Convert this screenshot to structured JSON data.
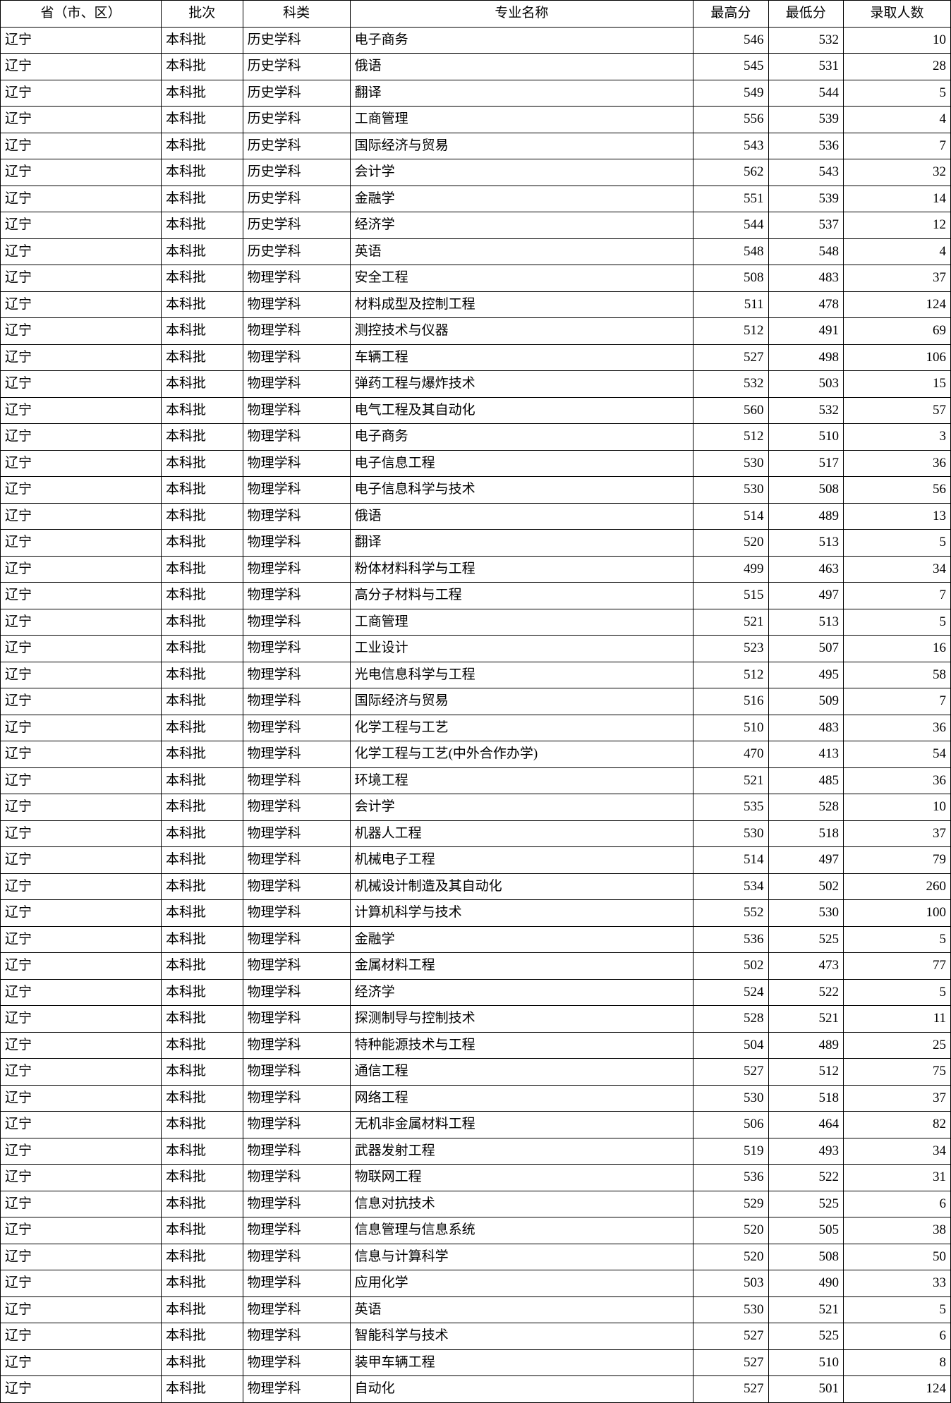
{
  "table": {
    "columns": [
      {
        "key": "province",
        "label": "省（市、区）",
        "class": "col-prov"
      },
      {
        "key": "batch",
        "label": "批次",
        "class": "col-batch"
      },
      {
        "key": "subject",
        "label": "科类",
        "class": "col-subj"
      },
      {
        "key": "major",
        "label": "专业名称",
        "class": "col-major"
      },
      {
        "key": "high",
        "label": "最高分",
        "class": "col-high"
      },
      {
        "key": "low",
        "label": "最低分",
        "class": "col-low"
      },
      {
        "key": "count",
        "label": "录取人数",
        "class": "col-count"
      }
    ],
    "rows": [
      {
        "province": "辽宁",
        "batch": "本科批",
        "subject": "历史学科",
        "major": "电子商务",
        "high": 546,
        "low": 532,
        "count": 10
      },
      {
        "province": "辽宁",
        "batch": "本科批",
        "subject": "历史学科",
        "major": "俄语",
        "high": 545,
        "low": 531,
        "count": 28
      },
      {
        "province": "辽宁",
        "batch": "本科批",
        "subject": "历史学科",
        "major": "翻译",
        "high": 549,
        "low": 544,
        "count": 5
      },
      {
        "province": "辽宁",
        "batch": "本科批",
        "subject": "历史学科",
        "major": "工商管理",
        "high": 556,
        "low": 539,
        "count": 4
      },
      {
        "province": "辽宁",
        "batch": "本科批",
        "subject": "历史学科",
        "major": "国际经济与贸易",
        "high": 543,
        "low": 536,
        "count": 7
      },
      {
        "province": "辽宁",
        "batch": "本科批",
        "subject": "历史学科",
        "major": "会计学",
        "high": 562,
        "low": 543,
        "count": 32
      },
      {
        "province": "辽宁",
        "batch": "本科批",
        "subject": "历史学科",
        "major": "金融学",
        "high": 551,
        "low": 539,
        "count": 14
      },
      {
        "province": "辽宁",
        "batch": "本科批",
        "subject": "历史学科",
        "major": "经济学",
        "high": 544,
        "low": 537,
        "count": 12
      },
      {
        "province": "辽宁",
        "batch": "本科批",
        "subject": "历史学科",
        "major": "英语",
        "high": 548,
        "low": 548,
        "count": 4
      },
      {
        "province": "辽宁",
        "batch": "本科批",
        "subject": "物理学科",
        "major": "安全工程",
        "high": 508,
        "low": 483,
        "count": 37
      },
      {
        "province": "辽宁",
        "batch": "本科批",
        "subject": "物理学科",
        "major": "材料成型及控制工程",
        "high": 511,
        "low": 478,
        "count": 124
      },
      {
        "province": "辽宁",
        "batch": "本科批",
        "subject": "物理学科",
        "major": "测控技术与仪器",
        "high": 512,
        "low": 491,
        "count": 69
      },
      {
        "province": "辽宁",
        "batch": "本科批",
        "subject": "物理学科",
        "major": "车辆工程",
        "high": 527,
        "low": 498,
        "count": 106
      },
      {
        "province": "辽宁",
        "batch": "本科批",
        "subject": "物理学科",
        "major": "弹药工程与爆炸技术",
        "high": 532,
        "low": 503,
        "count": 15
      },
      {
        "province": "辽宁",
        "batch": "本科批",
        "subject": "物理学科",
        "major": "电气工程及其自动化",
        "high": 560,
        "low": 532,
        "count": 57
      },
      {
        "province": "辽宁",
        "batch": "本科批",
        "subject": "物理学科",
        "major": "电子商务",
        "high": 512,
        "low": 510,
        "count": 3
      },
      {
        "province": "辽宁",
        "batch": "本科批",
        "subject": "物理学科",
        "major": "电子信息工程",
        "high": 530,
        "low": 517,
        "count": 36
      },
      {
        "province": "辽宁",
        "batch": "本科批",
        "subject": "物理学科",
        "major": "电子信息科学与技术",
        "high": 530,
        "low": 508,
        "count": 56
      },
      {
        "province": "辽宁",
        "batch": "本科批",
        "subject": "物理学科",
        "major": "俄语",
        "high": 514,
        "low": 489,
        "count": 13
      },
      {
        "province": "辽宁",
        "batch": "本科批",
        "subject": "物理学科",
        "major": "翻译",
        "high": 520,
        "low": 513,
        "count": 5
      },
      {
        "province": "辽宁",
        "batch": "本科批",
        "subject": "物理学科",
        "major": "粉体材料科学与工程",
        "high": 499,
        "low": 463,
        "count": 34
      },
      {
        "province": "辽宁",
        "batch": "本科批",
        "subject": "物理学科",
        "major": "高分子材料与工程",
        "high": 515,
        "low": 497,
        "count": 7
      },
      {
        "province": "辽宁",
        "batch": "本科批",
        "subject": "物理学科",
        "major": "工商管理",
        "high": 521,
        "low": 513,
        "count": 5
      },
      {
        "province": "辽宁",
        "batch": "本科批",
        "subject": "物理学科",
        "major": "工业设计",
        "high": 523,
        "low": 507,
        "count": 16
      },
      {
        "province": "辽宁",
        "batch": "本科批",
        "subject": "物理学科",
        "major": "光电信息科学与工程",
        "high": 512,
        "low": 495,
        "count": 58
      },
      {
        "province": "辽宁",
        "batch": "本科批",
        "subject": "物理学科",
        "major": "国际经济与贸易",
        "high": 516,
        "low": 509,
        "count": 7
      },
      {
        "province": "辽宁",
        "batch": "本科批",
        "subject": "物理学科",
        "major": "化学工程与工艺",
        "high": 510,
        "low": 483,
        "count": 36
      },
      {
        "province": "辽宁",
        "batch": "本科批",
        "subject": "物理学科",
        "major": "化学工程与工艺(中外合作办学)",
        "high": 470,
        "low": 413,
        "count": 54
      },
      {
        "province": "辽宁",
        "batch": "本科批",
        "subject": "物理学科",
        "major": "环境工程",
        "high": 521,
        "low": 485,
        "count": 36
      },
      {
        "province": "辽宁",
        "batch": "本科批",
        "subject": "物理学科",
        "major": "会计学",
        "high": 535,
        "low": 528,
        "count": 10
      },
      {
        "province": "辽宁",
        "batch": "本科批",
        "subject": "物理学科",
        "major": "机器人工程",
        "high": 530,
        "low": 518,
        "count": 37
      },
      {
        "province": "辽宁",
        "batch": "本科批",
        "subject": "物理学科",
        "major": "机械电子工程",
        "high": 514,
        "low": 497,
        "count": 79
      },
      {
        "province": "辽宁",
        "batch": "本科批",
        "subject": "物理学科",
        "major": "机械设计制造及其自动化",
        "high": 534,
        "low": 502,
        "count": 260
      },
      {
        "province": "辽宁",
        "batch": "本科批",
        "subject": "物理学科",
        "major": "计算机科学与技术",
        "high": 552,
        "low": 530,
        "count": 100
      },
      {
        "province": "辽宁",
        "batch": "本科批",
        "subject": "物理学科",
        "major": "金融学",
        "high": 536,
        "low": 525,
        "count": 5
      },
      {
        "province": "辽宁",
        "batch": "本科批",
        "subject": "物理学科",
        "major": "金属材料工程",
        "high": 502,
        "low": 473,
        "count": 77
      },
      {
        "province": "辽宁",
        "batch": "本科批",
        "subject": "物理学科",
        "major": "经济学",
        "high": 524,
        "low": 522,
        "count": 5
      },
      {
        "province": "辽宁",
        "batch": "本科批",
        "subject": "物理学科",
        "major": "探测制导与控制技术",
        "high": 528,
        "low": 521,
        "count": 11
      },
      {
        "province": "辽宁",
        "batch": "本科批",
        "subject": "物理学科",
        "major": "特种能源技术与工程",
        "high": 504,
        "low": 489,
        "count": 25
      },
      {
        "province": "辽宁",
        "batch": "本科批",
        "subject": "物理学科",
        "major": "通信工程",
        "high": 527,
        "low": 512,
        "count": 75
      },
      {
        "province": "辽宁",
        "batch": "本科批",
        "subject": "物理学科",
        "major": "网络工程",
        "high": 530,
        "low": 518,
        "count": 37
      },
      {
        "province": "辽宁",
        "batch": "本科批",
        "subject": "物理学科",
        "major": "无机非金属材料工程",
        "high": 506,
        "low": 464,
        "count": 82
      },
      {
        "province": "辽宁",
        "batch": "本科批",
        "subject": "物理学科",
        "major": "武器发射工程",
        "high": 519,
        "low": 493,
        "count": 34
      },
      {
        "province": "辽宁",
        "batch": "本科批",
        "subject": "物理学科",
        "major": "物联网工程",
        "high": 536,
        "low": 522,
        "count": 31
      },
      {
        "province": "辽宁",
        "batch": "本科批",
        "subject": "物理学科",
        "major": "信息对抗技术",
        "high": 529,
        "low": 525,
        "count": 6
      },
      {
        "province": "辽宁",
        "batch": "本科批",
        "subject": "物理学科",
        "major": "信息管理与信息系统",
        "high": 520,
        "low": 505,
        "count": 38
      },
      {
        "province": "辽宁",
        "batch": "本科批",
        "subject": "物理学科",
        "major": "信息与计算科学",
        "high": 520,
        "low": 508,
        "count": 50
      },
      {
        "province": "辽宁",
        "batch": "本科批",
        "subject": "物理学科",
        "major": "应用化学",
        "high": 503,
        "low": 490,
        "count": 33
      },
      {
        "province": "辽宁",
        "batch": "本科批",
        "subject": "物理学科",
        "major": "英语",
        "high": 530,
        "low": 521,
        "count": 5
      },
      {
        "province": "辽宁",
        "batch": "本科批",
        "subject": "物理学科",
        "major": "智能科学与技术",
        "high": 527,
        "low": 525,
        "count": 6
      },
      {
        "province": "辽宁",
        "batch": "本科批",
        "subject": "物理学科",
        "major": "装甲车辆工程",
        "high": 527,
        "low": 510,
        "count": 8
      },
      {
        "province": "辽宁",
        "batch": "本科批",
        "subject": "物理学科",
        "major": "自动化",
        "high": 527,
        "low": 501,
        "count": 124
      }
    ],
    "style": {
      "border_color": "#000000",
      "background_color": "#ffffff",
      "font_family": "SimSun",
      "font_size_pt": 14
    }
  }
}
